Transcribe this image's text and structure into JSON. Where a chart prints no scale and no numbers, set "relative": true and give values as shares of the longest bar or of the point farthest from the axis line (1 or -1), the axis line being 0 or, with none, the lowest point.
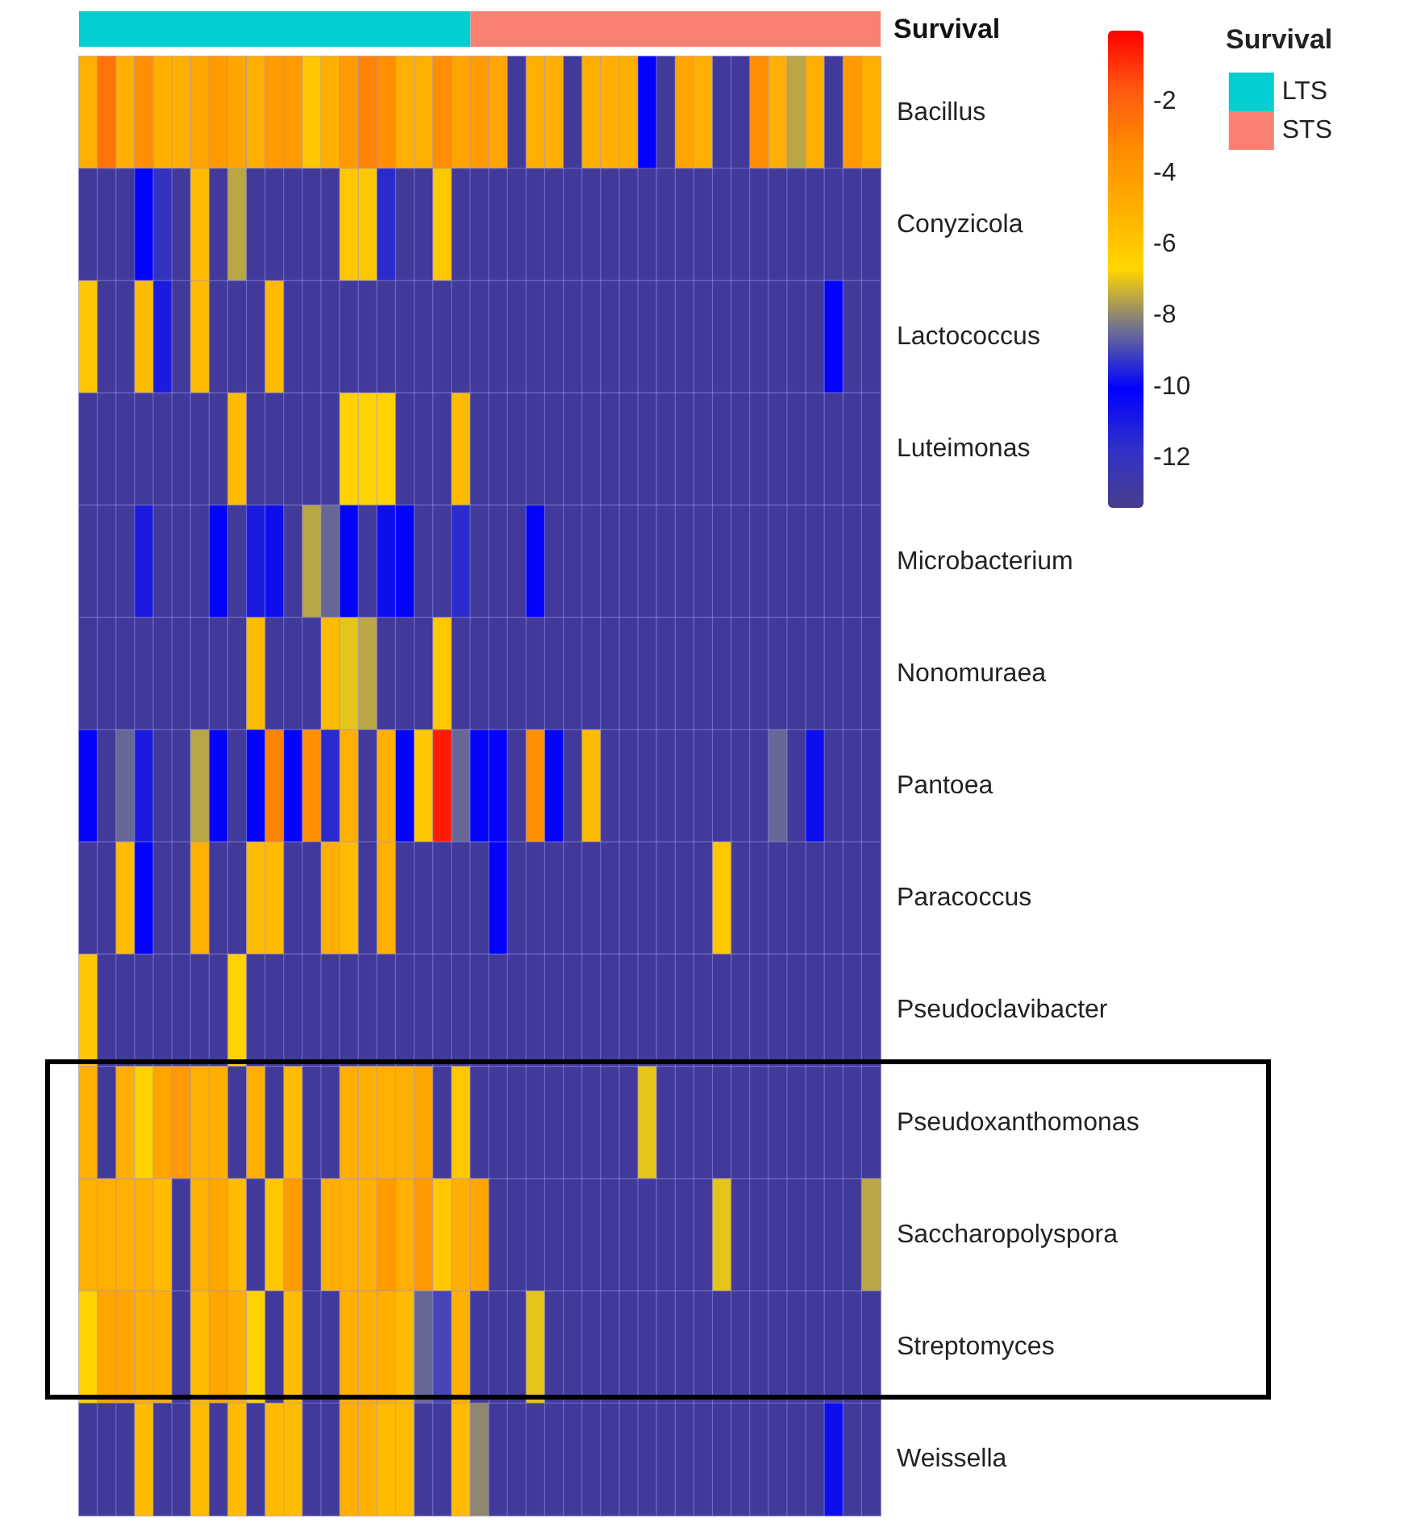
{
  "chart_data": [
    {
      "type": "bar",
      "orientation": "horizontal",
      "stacked": true,
      "relative": true,
      "categories": [
        "Survival"
      ],
      "legend_title": "Survival",
      "legend": "right",
      "series": [
        {
          "name": "LTS",
          "color": "#00ced1",
          "values": [
            0.4884
          ]
        },
        {
          "name": "STS",
          "color": "#fa8072",
          "values": [
            0.5116
          ]
        }
      ]
    },
    {
      "type": "heatmap",
      "categories": [
        null,
        null,
        null,
        null,
        null,
        null,
        null,
        null,
        null,
        null,
        null,
        null,
        null,
        null,
        null,
        null,
        null,
        null,
        null,
        null,
        null,
        null,
        null,
        null,
        null,
        null,
        null,
        null,
        null,
        null,
        null,
        null,
        null,
        null,
        null,
        null,
        null,
        null,
        null,
        null,
        null,
        null,
        null
      ],
      "y_categories": [
        "Bacillus",
        "Conyzicola",
        "Lactococcus",
        "Luteimonas",
        "Microbacterium",
        "Nonomuraea",
        "Pantoea",
        "Paracoccus",
        "Pseudoclavibacter",
        "Pseudoxanthomonas",
        "Saccharopolyspora",
        "Streptomyces",
        "Weissella"
      ],
      "clim": [
        -13.4,
        0
      ],
      "cticks": [
        -2,
        -4,
        -6,
        -8,
        -10,
        -12
      ],
      "cells": [
        [
          -5,
          -2.5,
          -5,
          -3.5,
          -5,
          -5,
          -4.5,
          -4,
          -4.5,
          -5,
          -4,
          -4,
          -6,
          -5,
          -4,
          -3,
          -3.5,
          -5,
          -5,
          -3.5,
          -4.5,
          -4,
          -4.5,
          -13,
          -5,
          -5,
          -13,
          -5,
          -5,
          -5,
          -10,
          -13,
          -4.5,
          -5,
          -13,
          -13,
          -3.5,
          -5,
          -7.5,
          -5,
          -13,
          -4,
          -5
        ],
        [
          -13,
          -13,
          -13,
          -10,
          -12,
          -13,
          -5.5,
          -13,
          -7.5,
          -13,
          -13,
          -13,
          -13,
          -13,
          -6,
          -6,
          -11.5,
          -13,
          -13,
          -6,
          -13,
          -13,
          -13,
          -13,
          -13,
          -13,
          -13,
          -13,
          -13,
          -13,
          -13,
          -13,
          -13,
          -13,
          -13,
          -13,
          -13,
          -13,
          -13,
          -13,
          -13,
          -13,
          -13
        ],
        [
          -6,
          -13,
          -13,
          -5.5,
          -11,
          -13,
          -5.5,
          -13,
          -13,
          -13,
          -5.5,
          -13,
          -13,
          -13,
          -13,
          -13,
          -13,
          -13,
          -13,
          -13,
          -13,
          -13,
          -13,
          -13,
          -13,
          -13,
          -13,
          -13,
          -13,
          -13,
          -13,
          -13,
          -13,
          -13,
          -13,
          -13,
          -13,
          -13,
          -13,
          -13,
          -10,
          -13,
          -13
        ],
        [
          -13,
          -13,
          -13,
          -13,
          -13,
          -13,
          -13,
          -13,
          -5.5,
          -13,
          -13,
          -13,
          -13,
          -13,
          -6.5,
          -6.5,
          -6.5,
          -13,
          -13,
          -13,
          -5.5,
          -13,
          -13,
          -13,
          -13,
          -13,
          -13,
          -13,
          -13,
          -13,
          -13,
          -13,
          -13,
          -13,
          -13,
          -13,
          -13,
          -13,
          -13,
          -13,
          -13,
          -13,
          -13
        ],
        [
          -13,
          -13,
          -13,
          -11,
          -13,
          -13,
          -13,
          -10,
          -13,
          -11,
          -10.5,
          -13,
          -7.5,
          -8.5,
          -10,
          -13,
          -10.5,
          -10,
          -13,
          -13,
          -11.5,
          -13,
          -13,
          -13,
          -10,
          -13,
          -13,
          -13,
          -13,
          -13,
          -13,
          -13,
          -13,
          -13,
          -13,
          -13,
          -13,
          -13,
          -13,
          -13,
          -13,
          -13,
          -13
        ],
        [
          -13,
          -13,
          -13,
          -13,
          -13,
          -13,
          -13,
          -13,
          -13,
          -5.5,
          -13,
          -13,
          -13,
          -5.5,
          -7,
          -7.5,
          -13,
          -13,
          -13,
          -6,
          -13,
          -13,
          -13,
          -13,
          -13,
          -13,
          -13,
          -13,
          -13,
          -13,
          -13,
          -13,
          -13,
          -13,
          -13,
          -13,
          -13,
          -13,
          -13,
          -13,
          -13,
          -13,
          -13
        ],
        [
          -10,
          -13,
          -8.5,
          -11,
          -13,
          -13,
          -7.5,
          -10,
          -13,
          -10,
          -3,
          -10,
          -3.5,
          -11.5,
          -5,
          -13,
          -5,
          -10,
          -6,
          -0.5,
          -8.5,
          -10,
          -10,
          -13,
          -3.5,
          -10,
          -13,
          -5.5,
          -13,
          -13,
          -13,
          -13,
          -13,
          -13,
          -13,
          -13,
          -13,
          -8.5,
          -13,
          -10.5,
          -13,
          -13,
          -13
        ],
        [
          -13,
          -13,
          -5.5,
          -10,
          -13,
          -13,
          -5,
          -13,
          -13,
          -5.5,
          -5.5,
          -13,
          -13,
          -5,
          -5.5,
          -13,
          -5,
          -13,
          -13,
          -13,
          -13,
          -13,
          -10,
          -13,
          -13,
          -13,
          -13,
          -13,
          -13,
          -13,
          -13,
          -13,
          -13,
          -13,
          -6,
          -13,
          -13,
          -13,
          -13,
          -13,
          -13,
          -13,
          -13
        ],
        [
          -6,
          -13,
          -13,
          -13,
          -13,
          -13,
          -13,
          -13,
          -6.5,
          -13,
          -13,
          -13,
          -13,
          -13,
          -13,
          -13,
          -13,
          -13,
          -13,
          -13,
          -13,
          -13,
          -13,
          -13,
          -13,
          -13,
          -13,
          -13,
          -13,
          -13,
          -13,
          -13,
          -13,
          -13,
          -13,
          -13,
          -13,
          -13,
          -13,
          -13,
          -13,
          -13,
          -13
        ],
        [
          -5,
          -13,
          -5,
          -6.5,
          -4.5,
          -4,
          -5,
          -5,
          -13,
          -5,
          -13,
          -5.5,
          -13,
          -13,
          -5,
          -5,
          -5,
          -5,
          -4.5,
          -13,
          -6,
          -13,
          -13,
          -13,
          -13,
          -13,
          -13,
          -13,
          -13,
          -13,
          -7,
          -13,
          -13,
          -13,
          -13,
          -13,
          -13,
          -13,
          -13,
          -13,
          -13,
          -13,
          -13
        ],
        [
          -5,
          -5,
          -5,
          -5,
          -5.5,
          -13,
          -5,
          -4.5,
          -5.5,
          -13,
          -6,
          -4,
          -13,
          -5,
          -5,
          -5,
          -4,
          -5,
          -4,
          -6,
          -5,
          -4.5,
          -13,
          -13,
          -13,
          -13,
          -13,
          -13,
          -13,
          -13,
          -13,
          -13,
          -13,
          -13,
          -7,
          -13,
          -13,
          -13,
          -13,
          -13,
          -13,
          -13,
          -7.5
        ],
        [
          -6.5,
          -4.5,
          -4.5,
          -5,
          -5,
          -13,
          -5.5,
          -4.5,
          -5,
          -6.5,
          -13,
          -5.5,
          -13,
          -13,
          -5,
          -5,
          -5,
          -5.5,
          -8.5,
          -9,
          -5,
          -13,
          -13,
          -13,
          -7,
          -13,
          -13,
          -13,
          -13,
          -13,
          -13,
          -13,
          -13,
          -13,
          -13,
          -13,
          -13,
          -13,
          -13,
          -13,
          -13,
          -13,
          -13
        ],
        [
          -13,
          -13,
          -13,
          -5.5,
          -13,
          -13,
          -5.5,
          -13,
          -5.5,
          -13,
          -5.5,
          -5.5,
          -13,
          -13,
          -5,
          -5,
          -5.5,
          -5.5,
          -13,
          -13,
          -5.5,
          -8,
          -13,
          -13,
          -13,
          -13,
          -13,
          -13,
          -13,
          -13,
          -13,
          -13,
          -13,
          -13,
          -13,
          -13,
          -13,
          -13,
          -13,
          -13,
          -10.5,
          -13,
          -13
        ]
      ]
    }
  ]
}
